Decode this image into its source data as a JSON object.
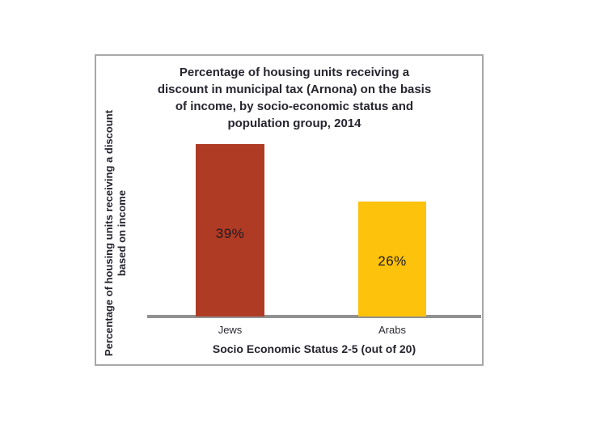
{
  "chart_data": {
    "type": "bar",
    "title": "Percentage of housing units receiving a discount in municipal tax (Arnona) on the basis of income, by socio-economic status and population group, 2014",
    "title_lines": [
      "Percentage of housing units receiving a",
      "discount in municipal tax (Arnona) on the basis",
      "of income, by socio-economic status and",
      "population group, 2014"
    ],
    "categories": [
      "Jews",
      "Arabs"
    ],
    "values": [
      39,
      26
    ],
    "value_labels": [
      "39%",
      "26%"
    ],
    "bar_colors": [
      "#AF3B25",
      "#FDC20B"
    ],
    "xlabel": "Socio Economic Status 2-5 (out of 20)",
    "ylabel": "Percentage of housing units receiving a discount based on income",
    "ylabel_lines": [
      "Percentage of housing units receiving a discount",
      "based on income"
    ],
    "ylim": [
      0,
      45
    ],
    "yticks": "none",
    "gridlines": false,
    "legend": "none",
    "baseline_color": "#919191",
    "frame_color": "#A8A8A8",
    "text_color": "#26252F"
  }
}
